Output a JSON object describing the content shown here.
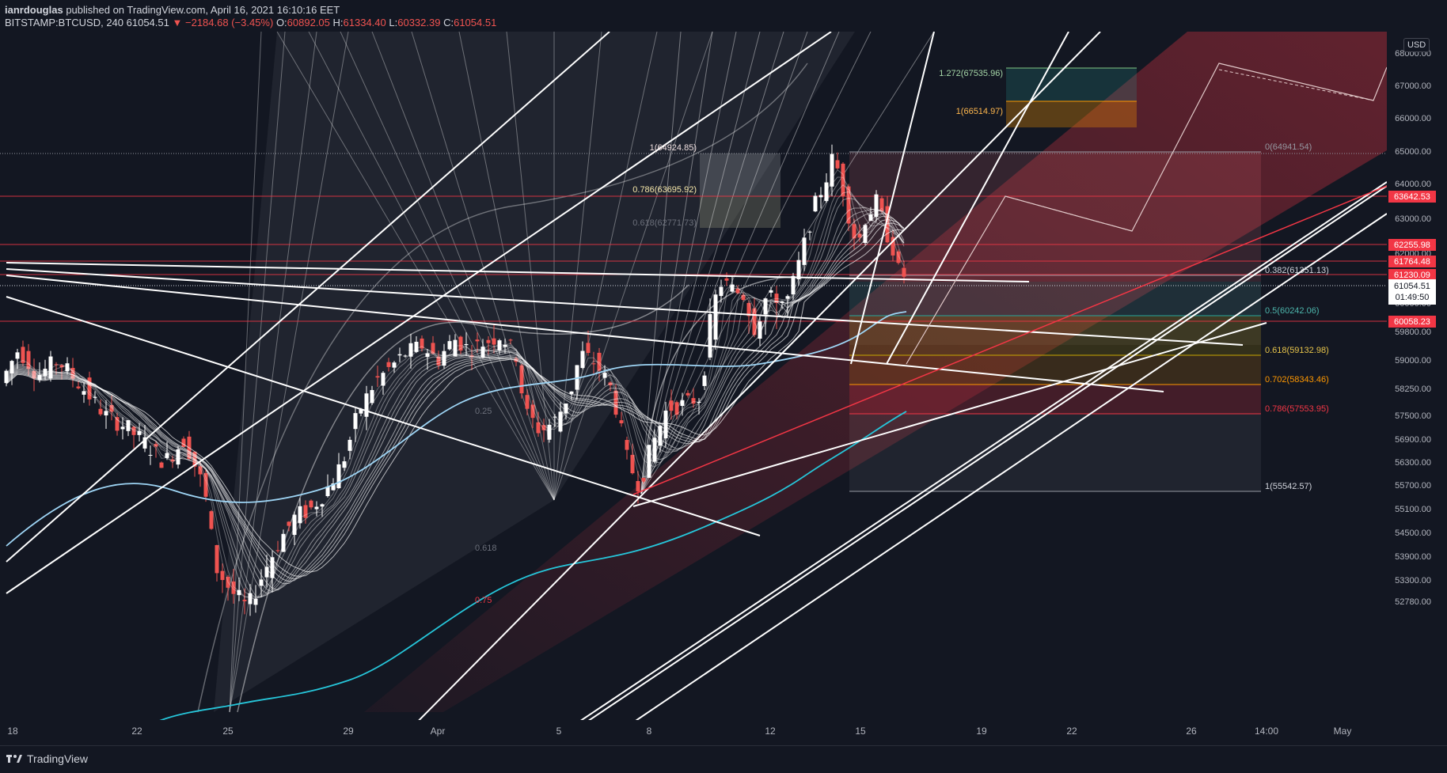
{
  "header": {
    "author": "ianrdouglas",
    "published": "published on TradingView.com, April 16, 2021 16:10:16 EET",
    "symbol": "BITSTAMP:BTCUSD, 240",
    "last": "61054.51",
    "change": "−2184.68 (−3.45%)",
    "open_label": "O:",
    "open": "60892.05",
    "high_label": "H:",
    "high": "61334.40",
    "low_label": "L:",
    "low": "60332.39",
    "close_label": "C:",
    "close": "61054.51"
  },
  "footer": {
    "brand": "TradingView"
  },
  "currency": "USD",
  "colors": {
    "background": "#131722",
    "up": "#ffffff",
    "down": "#ef5350",
    "ema": "#9ed5f5",
    "sma": "#26c6da",
    "level": "#f23645"
  },
  "chart_data": {
    "type": "candlestick",
    "symbol": "BITSTAMP:BTCUSD",
    "interval": "240",
    "x_ticks": [
      "18",
      "22",
      "25",
      "29",
      "Apr",
      "5",
      "8",
      "12",
      "15",
      "19",
      "22",
      "26",
      "14:00",
      "May"
    ],
    "y_ticks": [
      "68000.00",
      "67000.00",
      "66000.00",
      "65000.00",
      "64000.00",
      "63000.00",
      "62000.00",
      "60000.00",
      "59800.00",
      "59000.00",
      "58250.00",
      "57500.00",
      "56900.00",
      "56300.00",
      "55700.00",
      "55100.00",
      "54500.00",
      "53900.00",
      "53300.00",
      "52780.00"
    ],
    "horizontal_levels": [
      "63642.53",
      "62255.98",
      "61764.48",
      "61230.09",
      "60058.23"
    ],
    "last_price": "61054.51",
    "countdown": "01:49:50",
    "fib_retracement": [
      {
        "label": "0(64941.54)"
      },
      {
        "label": "0.382(61351.13)"
      },
      {
        "label": "0.5(60242.06)"
      },
      {
        "label": "0.618(59132.98)"
      },
      {
        "label": "0.702(58343.46)"
      },
      {
        "label": "0.786(57553.95)"
      },
      {
        "label": "1(55542.57)"
      }
    ],
    "fib_box_left": [
      {
        "label": "1(64924.85)"
      },
      {
        "label": "0.786(63695.92)"
      },
      {
        "label": "0.618(62771.73)"
      }
    ],
    "fib_box_right": [
      {
        "label": "1.272(67535.96)"
      },
      {
        "label": "1(66514.97)"
      }
    ],
    "fan_labels": [
      "0.25",
      "0.618",
      "0.75"
    ]
  }
}
